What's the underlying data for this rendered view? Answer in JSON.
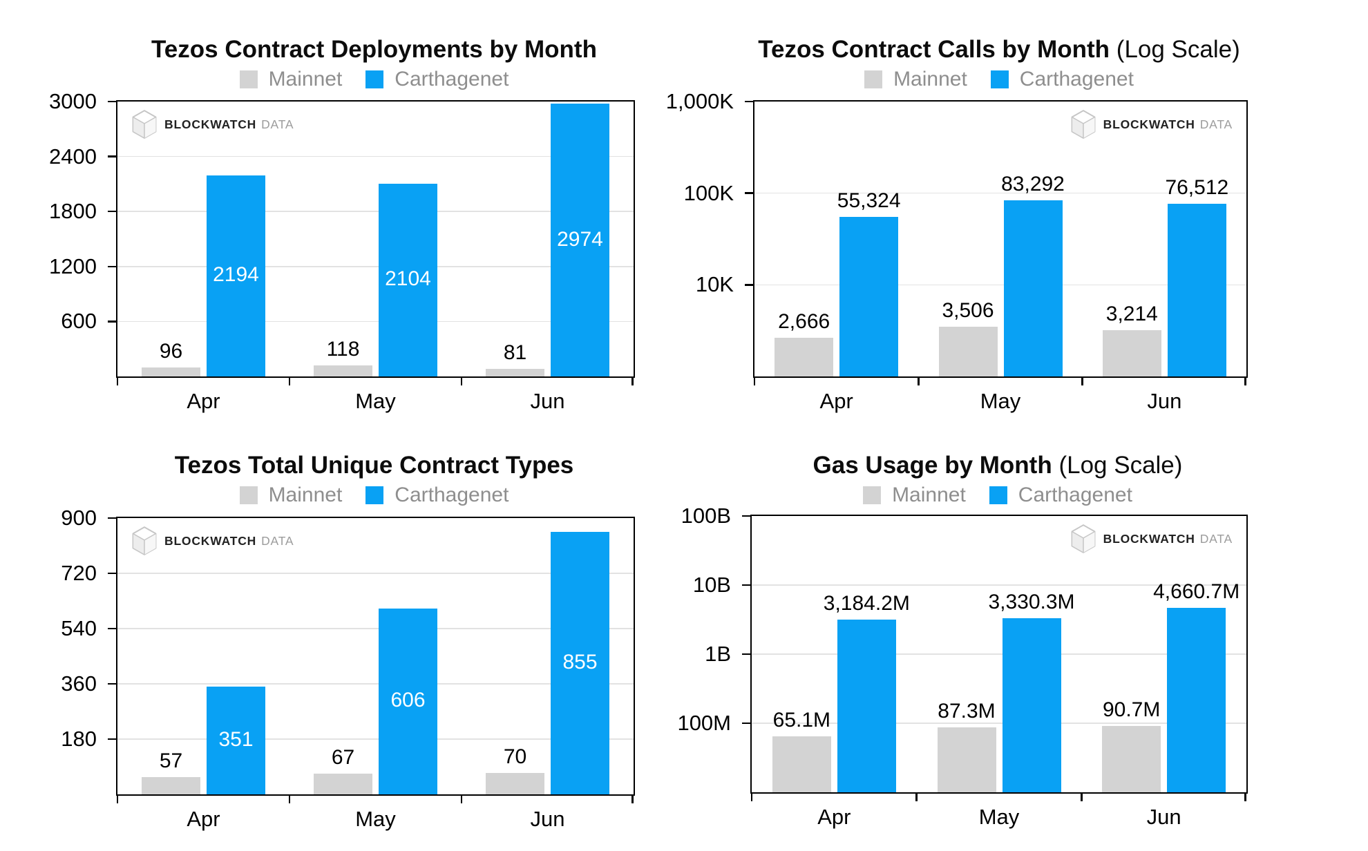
{
  "brand": {
    "name_bold": "BLOCKWATCH",
    "name_light": "DATA"
  },
  "colors": {
    "mainnet": "#d3d3d3",
    "carthagenet": "#09a1f4",
    "grid": "#e2e2e2",
    "axis": "#000000",
    "legend_text": "#8e8e8e",
    "value_label": "#000000",
    "value_label_in_bar": "#ffffff"
  },
  "chart_data": [
    {
      "type": "bar",
      "scale": "linear",
      "title": "Tezos Contract Deployments by Month",
      "title_suffix": "",
      "categories": [
        "Apr",
        "May",
        "Jun"
      ],
      "series": [
        {
          "name": "Mainnet",
          "values": [
            96,
            118,
            81
          ],
          "value_labels": [
            "96",
            "118",
            "81"
          ],
          "label_placement": "above"
        },
        {
          "name": "Carthagenet",
          "values": [
            2194,
            2104,
            2974
          ],
          "value_labels": [
            "2194",
            "2104",
            "2974"
          ],
          "label_placement": "inside"
        }
      ],
      "ylim": [
        0,
        3000
      ],
      "yticks": [
        {
          "value": 3000,
          "label": "3000"
        },
        {
          "value": 2400,
          "label": "2400"
        },
        {
          "value": 1800,
          "label": "1800"
        },
        {
          "value": 1200,
          "label": "1200"
        },
        {
          "value": 600,
          "label": "600"
        }
      ],
      "grid": "horizontal",
      "legend_position": "top",
      "logo_corner": "top-left"
    },
    {
      "type": "bar",
      "scale": "log",
      "title": "Tezos Contract Calls by Month",
      "title_suffix": " (Log Scale)",
      "categories": [
        "Apr",
        "May",
        "Jun"
      ],
      "series": [
        {
          "name": "Mainnet",
          "values": [
            2666,
            3506,
            3214
          ],
          "value_labels": [
            "2,666",
            "3,506",
            "3,214"
          ],
          "label_placement": "above"
        },
        {
          "name": "Carthagenet",
          "values": [
            55324,
            83292,
            76512
          ],
          "value_labels": [
            "55,324",
            "83,292",
            "76,512"
          ],
          "label_placement": "above"
        }
      ],
      "ylim": [
        1000,
        1000000
      ],
      "yticks": [
        {
          "value": 1000000,
          "label": "1,000K"
        },
        {
          "value": 100000,
          "label": "100K"
        },
        {
          "value": 10000,
          "label": "10K"
        }
      ],
      "grid": "horizontal",
      "legend_position": "top",
      "logo_corner": "top-right"
    },
    {
      "type": "bar",
      "scale": "linear",
      "title": "Tezos Total Unique Contract Types",
      "title_suffix": "",
      "categories": [
        "Apr",
        "May",
        "Jun"
      ],
      "series": [
        {
          "name": "Mainnet",
          "values": [
            57,
            67,
            70
          ],
          "value_labels": [
            "57",
            "67",
            "70"
          ],
          "label_placement": "above"
        },
        {
          "name": "Carthagenet",
          "values": [
            351,
            606,
            855
          ],
          "value_labels": [
            "351",
            "606",
            "855"
          ],
          "label_placement": "inside"
        }
      ],
      "ylim": [
        0,
        900
      ],
      "yticks": [
        {
          "value": 900,
          "label": "900"
        },
        {
          "value": 720,
          "label": "720"
        },
        {
          "value": 540,
          "label": "540"
        },
        {
          "value": 360,
          "label": "360"
        },
        {
          "value": 180,
          "label": "180"
        }
      ],
      "grid": "horizontal",
      "legend_position": "top",
      "logo_corner": "top-left"
    },
    {
      "type": "bar",
      "scale": "log",
      "title": "Gas Usage by Month",
      "title_suffix": " (Log Scale)",
      "categories": [
        "Apr",
        "May",
        "Jun"
      ],
      "series": [
        {
          "name": "Mainnet",
          "values": [
            65100000,
            87300000,
            90700000
          ],
          "value_labels": [
            "65.1M",
            "87.3M",
            "90.7M"
          ],
          "label_placement": "above"
        },
        {
          "name": "Carthagenet",
          "values": [
            3184200000,
            3330300000,
            4660700000
          ],
          "value_labels": [
            "3,184.2M",
            "3,330.3M",
            "4,660.7M"
          ],
          "label_placement": "above"
        }
      ],
      "ylim": [
        10000000,
        100000000000
      ],
      "yticks": [
        {
          "value": 100000000000,
          "label": "100B"
        },
        {
          "value": 10000000000,
          "label": "10B"
        },
        {
          "value": 1000000000,
          "label": "1B"
        },
        {
          "value": 100000000,
          "label": "100M"
        }
      ],
      "grid": "horizontal",
      "legend_position": "top",
      "logo_corner": "top-right"
    }
  ]
}
